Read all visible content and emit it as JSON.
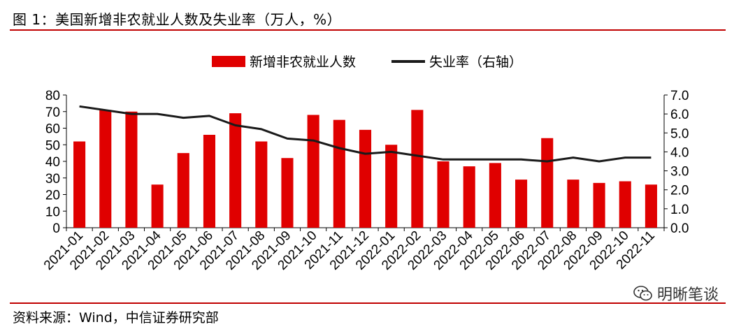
{
  "figure": {
    "title": "图 1：美国新增非农就业人数及失业率（万人，%）",
    "source": "资料来源：Wind，中信证券研究部",
    "watermark": "明晰笔谈"
  },
  "colors": {
    "bar": "#e00000",
    "line": "#1a1a1a",
    "rule": "#c00000",
    "axis": "#000000"
  },
  "chart_data": {
    "type": "bar",
    "categories": [
      "2021-01",
      "2021-02",
      "2021-03",
      "2021-04",
      "2021-05",
      "2021-06",
      "2021-07",
      "2021-08",
      "2021-09",
      "2021-10",
      "2021-11",
      "2021-12",
      "2022-01",
      "2022-02",
      "2022-03",
      "2022-04",
      "2022-05",
      "2022-06",
      "2022-07",
      "2022-08",
      "2022-09",
      "2022-10",
      "2022-11"
    ],
    "series": [
      {
        "name": "新增非农就业人数",
        "type": "bar",
        "axis": "left",
        "values": [
          52,
          71,
          70,
          26,
          45,
          56,
          69,
          52,
          42,
          68,
          65,
          59,
          50,
          71,
          40,
          37,
          39,
          29,
          54,
          29,
          27,
          28,
          26
        ]
      },
      {
        "name": "失业率（右轴）",
        "type": "line",
        "axis": "right",
        "values": [
          6.4,
          6.2,
          6.0,
          6.0,
          5.8,
          5.9,
          5.4,
          5.2,
          4.7,
          4.6,
          4.2,
          3.9,
          4.0,
          3.8,
          3.6,
          3.6,
          3.6,
          3.6,
          3.5,
          3.7,
          3.5,
          3.7,
          3.7
        ]
      }
    ],
    "y_left": {
      "min": 0,
      "max": 80,
      "step": 10,
      "ticks": [
        "0",
        "10",
        "20",
        "30",
        "40",
        "50",
        "60",
        "70",
        "80"
      ]
    },
    "y_right": {
      "min": 0,
      "max": 7,
      "step": 1,
      "ticks": [
        "0.0",
        "1.0",
        "2.0",
        "3.0",
        "4.0",
        "5.0",
        "6.0",
        "7.0"
      ]
    },
    "legend_position": "top-center",
    "grid": false
  }
}
